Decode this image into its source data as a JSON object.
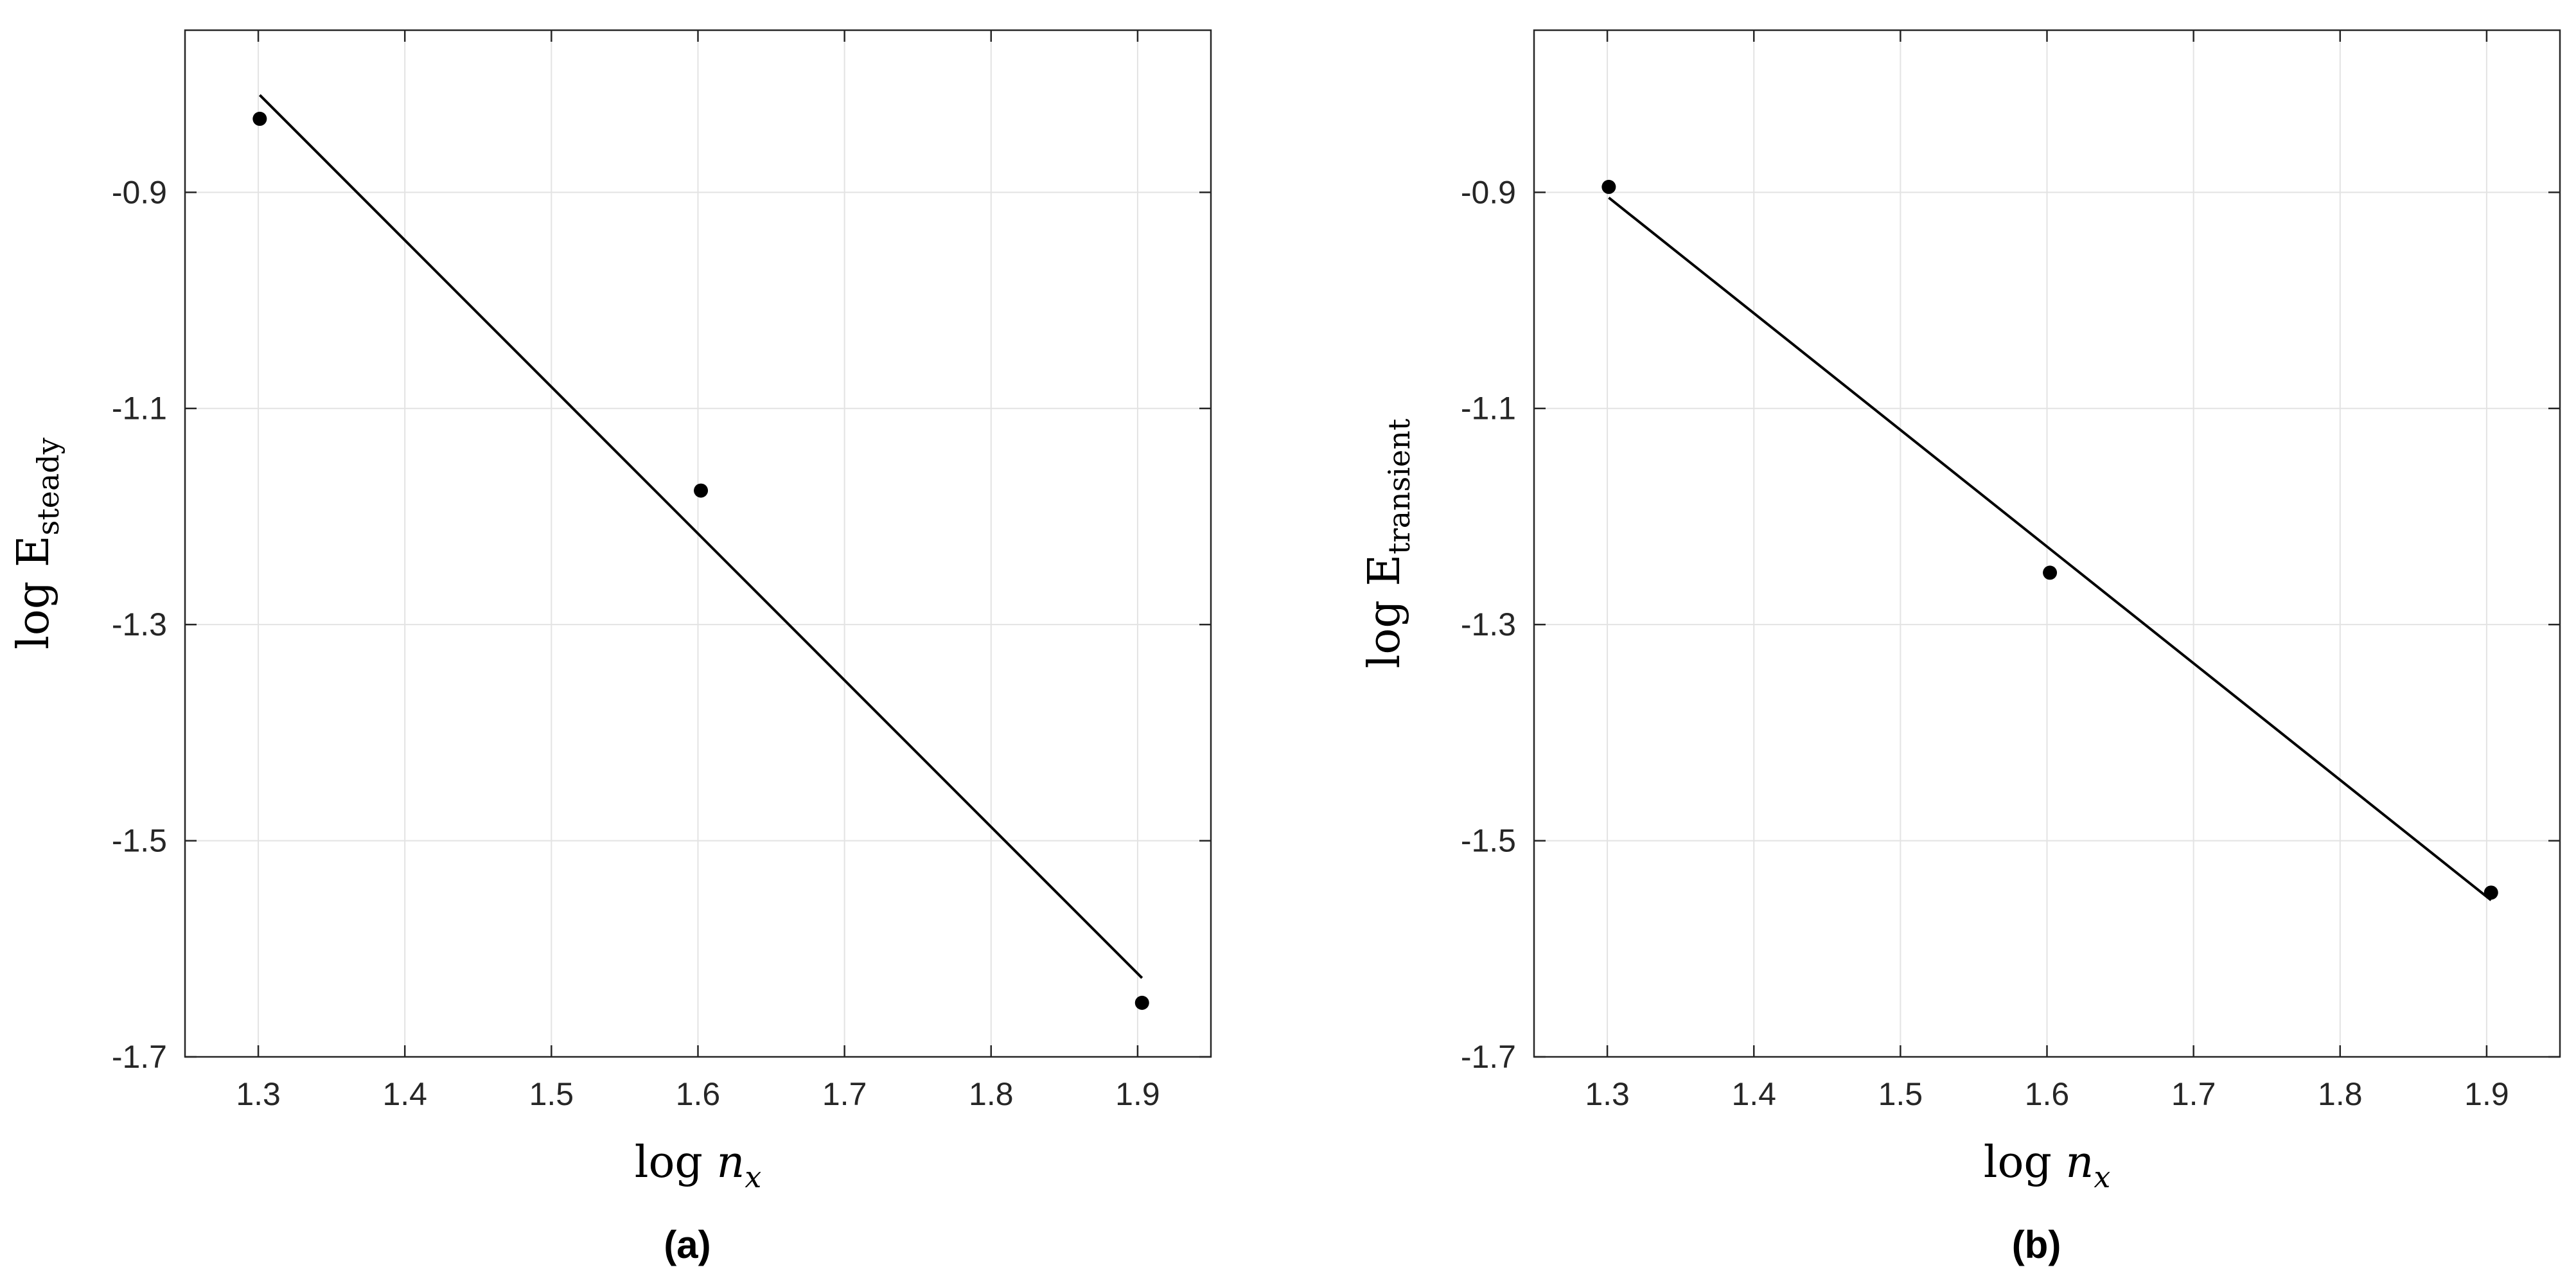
{
  "chart_data": [
    {
      "type": "scatter",
      "panel": "(a)",
      "xlabel": "log n",
      "xlabel_sub": "x",
      "ylabel": "log E",
      "ylabel_sub": "steady",
      "xlim": [
        1.25,
        1.95
      ],
      "ylim": [
        -1.7,
        -0.75
      ],
      "xticks": [
        "1.3",
        "1.4",
        "1.5",
        "1.6",
        "1.7",
        "1.8",
        "1.9"
      ],
      "yticks": [
        "-1.7",
        "-1.5",
        "-1.3",
        "-1.1",
        "-0.9"
      ],
      "grid": true,
      "points": {
        "x": [
          1.301,
          1.602,
          1.903
        ],
        "y": [
          -0.832,
          -1.176,
          -1.65
        ]
      },
      "fit_line": {
        "x": [
          1.301,
          1.903
        ],
        "y": [
          -0.81,
          -1.627
        ]
      }
    },
    {
      "type": "scatter",
      "panel": "(b)",
      "xlabel": "log n",
      "xlabel_sub": "x",
      "ylabel": "log E",
      "ylabel_sub": "transient",
      "xlim": [
        1.25,
        1.95
      ],
      "ylim": [
        -1.7,
        -0.75
      ],
      "xticks": [
        "1.3",
        "1.4",
        "1.5",
        "1.6",
        "1.7",
        "1.8",
        "1.9"
      ],
      "yticks": [
        "-1.7",
        "-1.5",
        "-1.3",
        "-1.1",
        "-0.9"
      ],
      "grid": true,
      "points": {
        "x": [
          1.301,
          1.602,
          1.903
        ],
        "y": [
          -0.895,
          -1.252,
          -1.548
        ]
      },
      "fit_line": {
        "x": [
          1.301,
          1.903
        ],
        "y": [
          -0.905,
          -1.555
        ]
      }
    }
  ]
}
